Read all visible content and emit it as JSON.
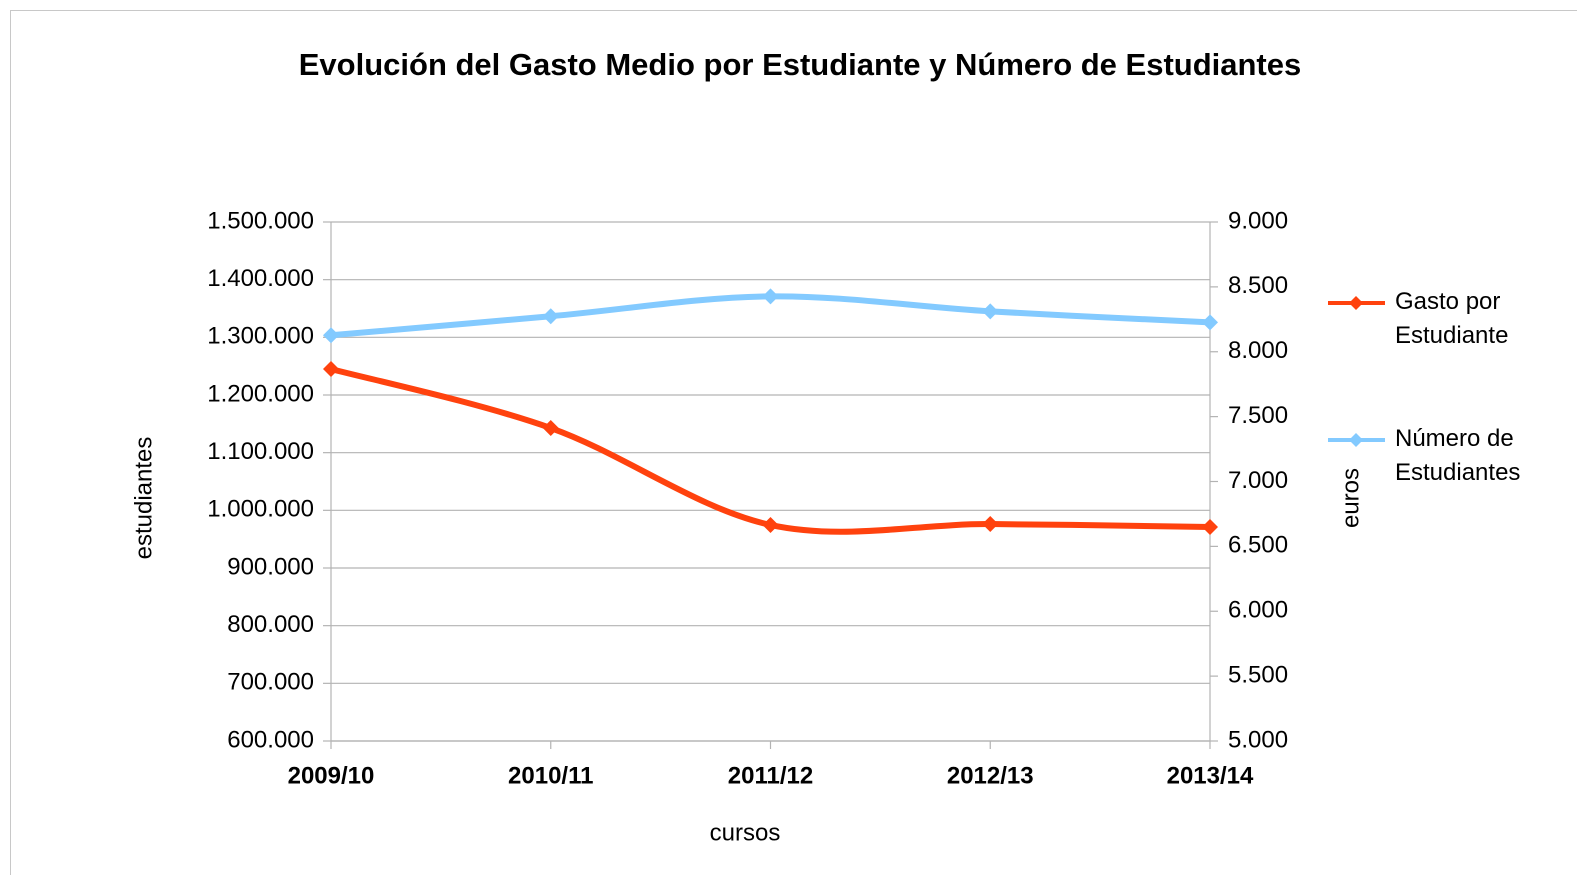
{
  "chart_data": {
    "type": "line",
    "title": "Evolución del Gasto Medio por Estudiante y Número de Estudiantes",
    "xlabel": "cursos",
    "ylabel": "estudiantes",
    "y2label": "euros",
    "categories": [
      "2009/10",
      "2010/11",
      "2011/12",
      "2012/13",
      "2013/14"
    ],
    "series": [
      {
        "name": "Gasto por Estudiante",
        "color": "#ff420e",
        "axis": "y2",
        "values": [
          7867,
          7412,
          6665,
          6672,
          6649
        ]
      },
      {
        "name": "Número de Estudiantes",
        "color": "#83caff",
        "values": [
          1303600,
          1336600,
          1371000,
          1345000,
          1326000
        ]
      }
    ],
    "ylim": [
      600000,
      1500000
    ],
    "yticks": [
      {
        "value": 600000,
        "label": "600.000"
      },
      {
        "value": 700000,
        "label": "700.000"
      },
      {
        "value": 800000,
        "label": "800.000"
      },
      {
        "value": 900000,
        "label": "900.000"
      },
      {
        "value": 1000000,
        "label": "1.000.000"
      },
      {
        "value": 1100000,
        "label": "1.100.000"
      },
      {
        "value": 1200000,
        "label": "1.200.000"
      },
      {
        "value": 1300000,
        "label": "1.300.000"
      },
      {
        "value": 1400000,
        "label": "1.400.000"
      },
      {
        "value": 1500000,
        "label": "1.500.000"
      }
    ],
    "y2lim": [
      5000,
      9000
    ],
    "y2ticks": [
      {
        "value": 5000,
        "label": "5.000"
      },
      {
        "value": 5500,
        "label": "5.500"
      },
      {
        "value": 6000,
        "label": "6.000"
      },
      {
        "value": 6500,
        "label": "6.500"
      },
      {
        "value": 7000,
        "label": "7.000"
      },
      {
        "value": 7500,
        "label": "7.500"
      },
      {
        "value": 8000,
        "label": "8.000"
      },
      {
        "value": 8500,
        "label": "8.500"
      },
      {
        "value": 9000,
        "label": "9.000"
      }
    ],
    "grid": true,
    "legend": "right",
    "smooth": true
  }
}
